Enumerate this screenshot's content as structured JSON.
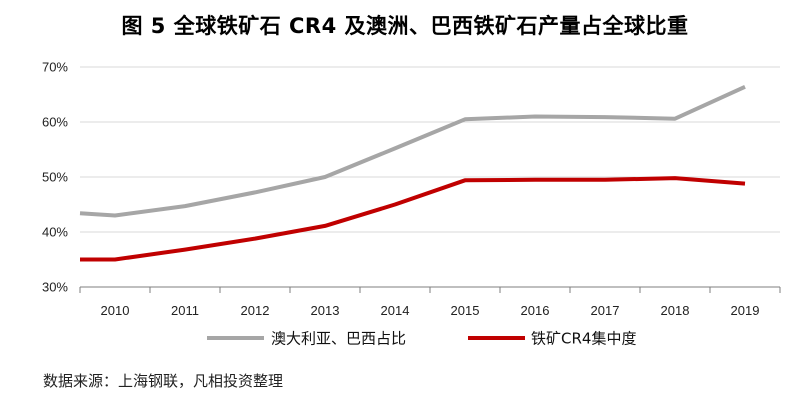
{
  "figure": {
    "title": "图 5   全球铁矿石 CR4 及澳洲、巴西铁矿石产量占全球比重",
    "source": "数据来源：上海钢联，凡相投资整理"
  },
  "chart_data": {
    "type": "line",
    "title": "图 5   全球铁矿石 CR4 及澳洲、巴西铁矿石产量占全球比重",
    "xlabel": "",
    "ylabel": "",
    "x": [
      2009.5,
      2010,
      2011,
      2012,
      2013,
      2014,
      2015,
      2016,
      2017,
      2018,
      2019
    ],
    "xticks": [
      "2010",
      "2011",
      "2012",
      "2013",
      "2014",
      "2015",
      "2016",
      "2017",
      "2018",
      "2019"
    ],
    "ylim": [
      30,
      70
    ],
    "yticks": [
      30,
      40,
      50,
      60,
      70
    ],
    "ytick_labels": [
      "30%",
      "40%",
      "50%",
      "60%",
      "70%"
    ],
    "grid": "horizontal",
    "legend_position": "bottom",
    "series": [
      {
        "name": "澳大利亚、巴西占比",
        "color": "#a6a6a6",
        "values": [
          43.4,
          43.0,
          44.7,
          47.2,
          50.0,
          55.2,
          60.5,
          61.0,
          60.9,
          60.6,
          66.4
        ]
      },
      {
        "name": "铁矿CR4集中度",
        "color": "#c00000",
        "values": [
          35.0,
          35.0,
          36.8,
          38.8,
          41.1,
          45.0,
          49.4,
          49.5,
          49.5,
          49.8,
          48.8
        ]
      }
    ]
  }
}
